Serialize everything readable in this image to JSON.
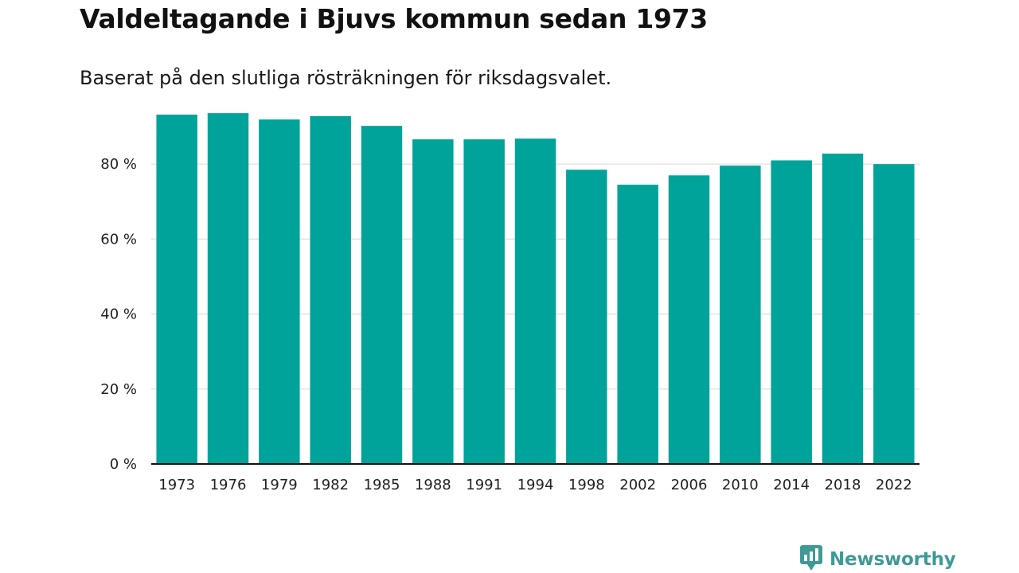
{
  "header": {
    "title": "Valdeltagande i Bjuvs kommun sedan 1973",
    "subtitle": "Baserat på den slutliga rösträkningen för riksdagsvalet."
  },
  "brand": {
    "name": "Newsworthy",
    "icon": "newsworthy-logo-icon",
    "color": "#3f9a96"
  },
  "chart_data": {
    "type": "bar",
    "categories": [
      "1973",
      "1976",
      "1979",
      "1982",
      "1985",
      "1988",
      "1991",
      "1994",
      "1998",
      "2002",
      "2006",
      "2010",
      "2014",
      "2018",
      "2022"
    ],
    "values": [
      93.2,
      93.6,
      91.9,
      92.8,
      90.2,
      86.6,
      86.6,
      86.8,
      78.5,
      74.5,
      77.0,
      79.6,
      81.0,
      82.8,
      80.0
    ],
    "ylim": [
      0,
      100
    ],
    "yticks": [
      0,
      20,
      40,
      60,
      80
    ],
    "ytick_labels": [
      "0 %",
      "20 %",
      "40 %",
      "60 %",
      "80 %"
    ],
    "grid": true,
    "bar_color": "#00a39a",
    "grid_color": "#dddddd",
    "axis_color": "#111111"
  }
}
